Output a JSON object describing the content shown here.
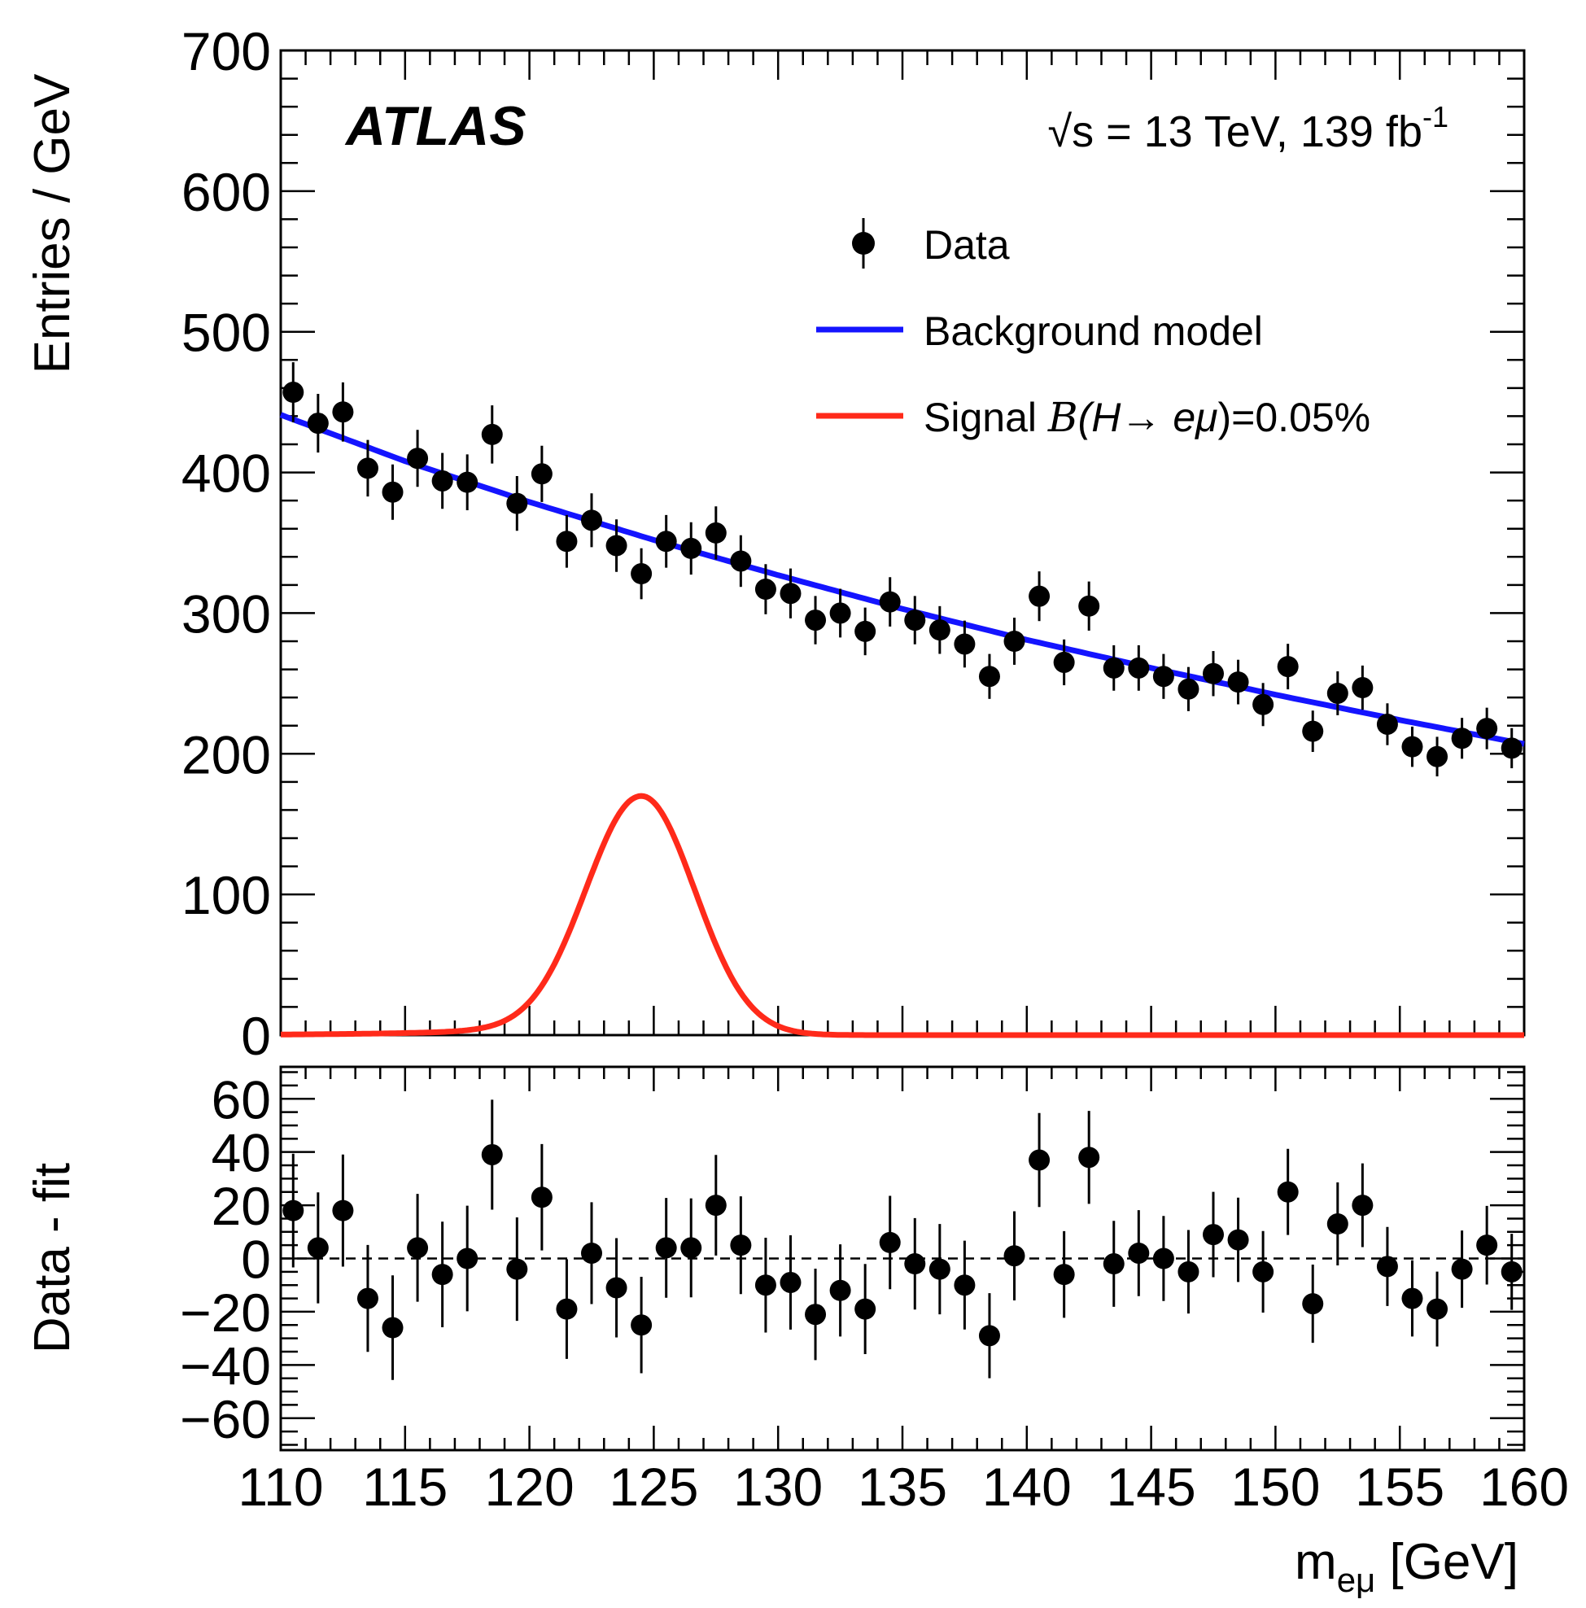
{
  "chart_data": [
    {
      "type": "scatter",
      "panel": "main",
      "experiment_label": "ATLAS",
      "energy_label": "√s = 13 TeV, 139 fb",
      "energy_label_sup": "-1",
      "ylabel": "Entries / GeV",
      "xlim": [
        110,
        160
      ],
      "ylim": [
        0,
        700
      ],
      "yticks": [
        0,
        100,
        200,
        300,
        400,
        500,
        600,
        700
      ],
      "legend": {
        "position": "top-right",
        "data": "Data",
        "background": "Background model",
        "signal_prefix": "Signal ",
        "signal_B": "B",
        "signal_H": "(H",
        "signal_arrow": "→ ",
        "signal_emu": "eμ",
        "signal_suffix": ")=0.05%"
      },
      "colors": {
        "data": "#000000",
        "background": "#1414ff",
        "signal": "#ff2a1a"
      },
      "series": [
        {
          "name": "Data",
          "x": [
            110.5,
            111.5,
            112.5,
            113.5,
            114.5,
            115.5,
            116.5,
            117.5,
            118.5,
            119.5,
            120.5,
            121.5,
            122.5,
            123.5,
            124.5,
            125.5,
            126.5,
            127.5,
            128.5,
            129.5,
            130.5,
            131.5,
            132.5,
            133.5,
            134.5,
            135.5,
            136.5,
            137.5,
            138.5,
            139.5,
            140.5,
            141.5,
            142.5,
            143.5,
            144.5,
            145.5,
            146.5,
            147.5,
            148.5,
            149.5,
            150.5,
            151.5,
            152.5,
            153.5,
            154.5,
            155.5,
            156.5,
            157.5,
            158.5,
            159.5
          ],
          "y": [
            457,
            435,
            443,
            403,
            386,
            410,
            394,
            393,
            427,
            378,
            399,
            351,
            366,
            348,
            328,
            351,
            346,
            357,
            337,
            317,
            314,
            295,
            300,
            287,
            308,
            295,
            288,
            278,
            255,
            280,
            312,
            265,
            305,
            261,
            261,
            255,
            246,
            257,
            251,
            235,
            262,
            216,
            243,
            247,
            221,
            205,
            198,
            211,
            218,
            204
          ]
        },
        {
          "name": "Background model",
          "x": [
            110,
            115,
            120,
            125,
            130,
            135,
            140,
            145,
            150,
            155,
            160
          ],
          "y": [
            441,
            408,
            379,
            352,
            327,
            303,
            281,
            261,
            242,
            224,
            207
          ]
        },
        {
          "name": "Signal B(H→eμ)=0.05%",
          "peak_x": 124.5,
          "peak_y": 170,
          "sigma": 2.15,
          "low_tail": true
        }
      ]
    },
    {
      "type": "scatter",
      "panel": "ratio",
      "xlabel": "m",
      "xlabel_sub": "eμ",
      "xlabel_unit": " [GeV]",
      "ylabel": "Data - fit",
      "xlim": [
        110,
        160
      ],
      "ylim": [
        -72,
        72
      ],
      "xticks": [
        110,
        115,
        120,
        125,
        130,
        135,
        140,
        145,
        150,
        155,
        160
      ],
      "yticks": [
        -60,
        -40,
        -20,
        0,
        20,
        40,
        60
      ],
      "series": [
        {
          "name": "Data - fit",
          "x": [
            110.5,
            111.5,
            112.5,
            113.5,
            114.5,
            115.5,
            116.5,
            117.5,
            118.5,
            119.5,
            120.5,
            121.5,
            122.5,
            123.5,
            124.5,
            125.5,
            126.5,
            127.5,
            128.5,
            129.5,
            130.5,
            131.5,
            132.5,
            133.5,
            134.5,
            135.5,
            136.5,
            137.5,
            138.5,
            139.5,
            140.5,
            141.5,
            142.5,
            143.5,
            144.5,
            145.5,
            146.5,
            147.5,
            148.5,
            149.5,
            150.5,
            151.5,
            152.5,
            153.5,
            154.5,
            155.5,
            156.5,
            157.5,
            158.5,
            159.5
          ],
          "y": [
            18,
            4,
            18,
            -15,
            -26,
            4,
            -6,
            0,
            39,
            -4,
            23,
            -19,
            2,
            -11,
            -25,
            4,
            4,
            20,
            5,
            -10,
            -9,
            -21,
            -12,
            -19,
            6,
            -2,
            -4,
            -10,
            -29,
            1,
            37,
            -6,
            38,
            -2,
            2,
            0,
            -5,
            9,
            7,
            -5,
            25,
            -17,
            13,
            20,
            -3,
            -15,
            -19,
            -4,
            5,
            -5
          ]
        }
      ]
    }
  ]
}
